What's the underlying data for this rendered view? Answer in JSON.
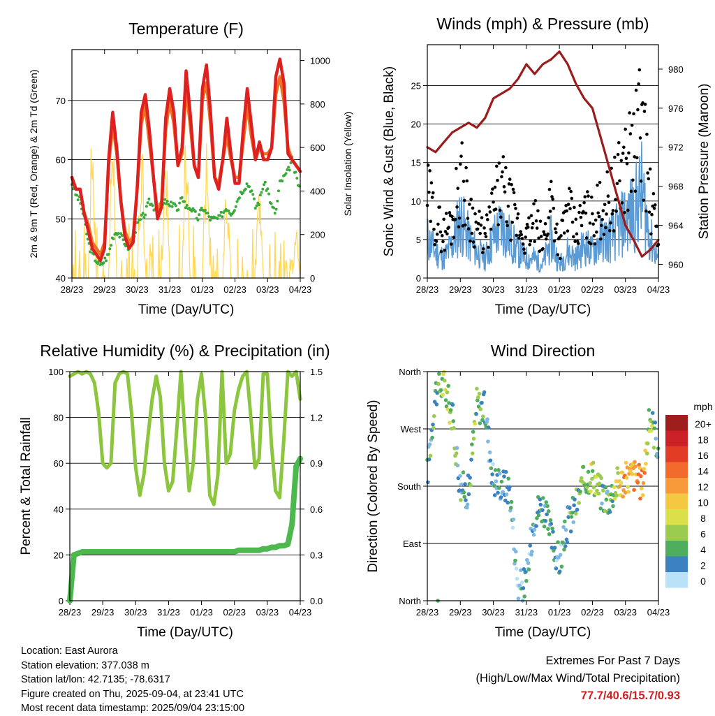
{
  "time_ticks": [
    "28/23",
    "29/23",
    "30/23",
    "31/23",
    "01/23",
    "02/23",
    "03/23",
    "04/23"
  ],
  "colors": {
    "temp2m": "#dd2020",
    "temp9m": "#f07020",
    "dewpoint": "#3aaa3a",
    "solar": "#ffd54a",
    "wind": "#5b9bd5",
    "gust": "#000000",
    "pressure": "#9a1c1c",
    "rh": "#8cc63f",
    "precip": "#4db84d"
  },
  "chart_data": [
    {
      "type": "line",
      "title": "Temperature (F)",
      "xlabel": "Time (Day/UTC)",
      "ylabel": "2m & 9m T (Red, Orange) & 2m Td (Green)",
      "ylabel_right": "Solar Insolation (Yellow)",
      "ylim": [
        40,
        78.6
      ],
      "ylim_right": [
        0,
        1050
      ],
      "yticks": [
        40,
        50,
        60,
        70
      ],
      "yticks_right": [
        0,
        200,
        400,
        600,
        800,
        1000
      ],
      "x_hours": [
        0,
        3,
        6,
        9,
        12,
        15,
        18,
        21,
        24,
        27,
        30,
        33,
        36,
        39,
        42,
        45,
        48,
        51,
        54,
        57,
        60,
        63,
        66,
        69,
        72,
        75,
        78,
        81,
        84,
        87,
        90,
        93,
        96,
        99,
        102,
        105,
        108,
        111,
        114,
        117,
        120,
        123,
        126,
        129,
        132,
        135,
        138,
        141,
        144,
        147,
        150,
        153,
        156,
        159,
        162,
        165,
        168
      ],
      "series": [
        {
          "name": "2m T",
          "values": [
            57,
            55,
            55,
            51,
            48,
            45,
            44,
            43,
            45,
            60,
            68,
            62,
            53,
            47,
            45,
            46,
            55,
            68,
            71,
            65,
            57,
            50,
            52,
            67,
            72,
            68,
            59,
            62,
            75,
            68,
            59,
            57,
            72,
            76,
            68,
            57,
            55,
            60,
            67,
            61,
            56,
            56,
            65,
            72,
            66,
            60,
            63,
            60,
            60,
            62,
            74,
            77,
            73,
            61,
            60,
            59,
            58
          ]
        },
        {
          "name": "9m T",
          "values": [
            57,
            55,
            55,
            51,
            49,
            46,
            45,
            44,
            46,
            59,
            66,
            61,
            53,
            48,
            46,
            47,
            55,
            66,
            69,
            63,
            57,
            51,
            53,
            65,
            70,
            66,
            59,
            61,
            72,
            66,
            59,
            57,
            70,
            73,
            66,
            57,
            56,
            60,
            64,
            60,
            57,
            57,
            63,
            69,
            64,
            60,
            62,
            61,
            61,
            62,
            71,
            74,
            70,
            62,
            60,
            59,
            58
          ]
        },
        {
          "name": "2m Td",
          "values": [
            56,
            54,
            53,
            50,
            46,
            44,
            43,
            42,
            43,
            44,
            47,
            48,
            47,
            46,
            45,
            47,
            49,
            50,
            51,
            53,
            52,
            52,
            52,
            53,
            52,
            53,
            51,
            54,
            52,
            52,
            51,
            50,
            52,
            51,
            50,
            50,
            50,
            51,
            52,
            51,
            52,
            54,
            55,
            56,
            55,
            52,
            53,
            56,
            55,
            52,
            51,
            56,
            57,
            58,
            60,
            57,
            55
          ]
        },
        {
          "name": "Solar Insolation",
          "values": [
            0,
            0,
            0,
            0,
            0,
            900,
            0,
            0,
            0,
            0,
            1010,
            0,
            0,
            0,
            0,
            0,
            0,
            960,
            0,
            0,
            0,
            0,
            0,
            790,
            0,
            0,
            0,
            0,
            890,
            0,
            0,
            0,
            0,
            930,
            0,
            0,
            0,
            0,
            620,
            0,
            0,
            0,
            0,
            0,
            0,
            0,
            650,
            0,
            0,
            0,
            0,
            0,
            0,
            0,
            0,
            280,
            0
          ]
        }
      ]
    },
    {
      "type": "scatter",
      "title": "Winds (mph) & Pressure (mb)",
      "xlabel": "Time (Day/UTC)",
      "ylabel": "Sonic Wind & Gust (Blue, Black)",
      "ylabel_right": "Station Pressure (Maroon)",
      "ylim": [
        0,
        30.3
      ],
      "ylim_right": [
        958.6,
        982.5
      ],
      "yticks": [
        0,
        5,
        10,
        15,
        20,
        25
      ],
      "yticks_right": [
        960,
        964,
        968,
        972,
        976,
        980
      ],
      "x_hours": [
        0,
        6,
        12,
        18,
        24,
        30,
        36,
        42,
        48,
        54,
        60,
        66,
        72,
        78,
        84,
        90,
        96,
        102,
        108,
        114,
        120,
        126,
        132,
        138,
        144,
        150,
        156,
        162,
        168
      ],
      "series": [
        {
          "name": "Sonic Wind",
          "values": [
            6,
            4,
            3,
            5,
            9,
            6,
            4,
            3,
            6,
            8,
            6,
            4,
            3,
            3,
            2,
            6,
            2,
            4,
            3,
            5,
            4,
            6,
            6,
            7,
            9,
            10,
            13,
            6,
            3
          ]
        },
        {
          "name": "Gust",
          "values": [
            13,
            9,
            7,
            9,
            16,
            11,
            8,
            6,
            11,
            14,
            11,
            8,
            6,
            9,
            5,
            13,
            5,
            11,
            7,
            10,
            9,
            11,
            12,
            14,
            18,
            20,
            25,
            12,
            6
          ]
        },
        {
          "name": "Station Pressure",
          "values": [
            972,
            971.5,
            972.5,
            973.5,
            974,
            974.5,
            974,
            975,
            977,
            977.5,
            978,
            979,
            980.5,
            979.5,
            980.5,
            981,
            981.8,
            980.5,
            978.5,
            977,
            976,
            973,
            970,
            967,
            964,
            962.5,
            960.8,
            961.5,
            962.5
          ]
        }
      ]
    },
    {
      "type": "line",
      "title": "Relative Humidity (%) & Precipitation (in)",
      "xlabel": "Time (Day/UTC)",
      "ylabel": "Percent & Total Rainfall",
      "ylim": [
        0,
        100
      ],
      "ylim_right": [
        0,
        1.5
      ],
      "yticks": [
        0,
        20,
        40,
        60,
        80,
        100
      ],
      "yticks_right": [
        0.0,
        0.3,
        0.6,
        0.9,
        1.2,
        1.5
      ],
      "x_hours": [
        0,
        3,
        6,
        9,
        12,
        15,
        18,
        21,
        24,
        27,
        30,
        33,
        36,
        39,
        42,
        45,
        48,
        51,
        54,
        57,
        60,
        63,
        66,
        69,
        72,
        75,
        78,
        81,
        84,
        87,
        90,
        93,
        96,
        99,
        102,
        105,
        108,
        111,
        114,
        117,
        120,
        123,
        126,
        129,
        132,
        135,
        138,
        141,
        144,
        147,
        150,
        153,
        156,
        159,
        162,
        165,
        168
      ],
      "series": [
        {
          "name": "Relative Humidity",
          "values": [
            98,
            99,
            100,
            99,
            100,
            99,
            95,
            82,
            60,
            58,
            60,
            95,
            99,
            100,
            99,
            82,
            58,
            46,
            55,
            72,
            88,
            98,
            89,
            60,
            48,
            52,
            75,
            100,
            72,
            48,
            60,
            88,
            99,
            80,
            46,
            42,
            55,
            100,
            60,
            64,
            83,
            92,
            98,
            100,
            80,
            58,
            62,
            99,
            99,
            68,
            48,
            45,
            70,
            100,
            98,
            100,
            88
          ]
        },
        {
          "name": "Total Rainfall",
          "values": [
            0.0,
            0.3,
            0.31,
            0.32,
            0.32,
            0.32,
            0.32,
            0.32,
            0.32,
            0.32,
            0.32,
            0.32,
            0.32,
            0.32,
            0.32,
            0.32,
            0.32,
            0.32,
            0.32,
            0.32,
            0.32,
            0.32,
            0.32,
            0.32,
            0.32,
            0.32,
            0.32,
            0.32,
            0.32,
            0.32,
            0.32,
            0.32,
            0.32,
            0.32,
            0.32,
            0.32,
            0.32,
            0.32,
            0.32,
            0.32,
            0.32,
            0.33,
            0.33,
            0.33,
            0.33,
            0.33,
            0.33,
            0.34,
            0.34,
            0.35,
            0.35,
            0.36,
            0.36,
            0.37,
            0.5,
            0.88,
            0.93
          ]
        }
      ]
    },
    {
      "type": "scatter",
      "title": "Wind Direction",
      "xlabel": "Time (Day/UTC)",
      "ylabel": "Direction (Colored By Speed)",
      "ylim": [
        0,
        360
      ],
      "yticks": [
        0,
        90,
        180,
        270,
        360
      ],
      "ytick_labels": [
        "North",
        "East",
        "South",
        "West",
        "North"
      ],
      "x_hours": [
        0,
        6,
        12,
        18,
        24,
        30,
        36,
        42,
        48,
        54,
        60,
        66,
        72,
        78,
        84,
        90,
        96,
        102,
        108,
        114,
        120,
        126,
        132,
        138,
        144,
        150,
        156,
        162,
        168
      ],
      "series": [
        {
          "name": "Direction",
          "values": [
            200,
            330,
            340,
            290,
            180,
            170,
            310,
            300,
            190,
            185,
            175,
            20,
            30,
            140,
            150,
            100,
            60,
            120,
            150,
            190,
            200,
            170,
            160,
            185,
            190,
            200,
            180,
            290,
            240
          ]
        },
        {
          "name": "Speed",
          "values": [
            4,
            6,
            8,
            6,
            5,
            4,
            8,
            4,
            3,
            4,
            4,
            2,
            3,
            4,
            6,
            5,
            3,
            4,
            5,
            8,
            9,
            6,
            5,
            10,
            13,
            14,
            14,
            8,
            3
          ]
        }
      ],
      "colorbar": {
        "title": "mph",
        "labels": [
          "20+",
          "18",
          "16",
          "14",
          "12",
          "10",
          "8",
          "6",
          "4",
          "2",
          "0"
        ],
        "colors": [
          "#a01d1d",
          "#cc2127",
          "#e23c24",
          "#f26a2c",
          "#f89a3a",
          "#f5c842",
          "#dbe04a",
          "#9bcc4f",
          "#4fae5e",
          "#3c82c0",
          "#7fb8e3",
          "#b9e1f7"
        ]
      }
    }
  ],
  "info": {
    "location": "Location: East Aurora",
    "elevation": "Station elevation: 377.038 m",
    "latlon": "Station lat/lon: 42.7135; -78.6317",
    "created": "Figure created on Thu, 2025-09-04, at 23:41 UTC",
    "recent": "Most recent data timestamp: 2025/09/04 23:15:00"
  },
  "extremes": {
    "heading": "Extremes For Past 7 Days",
    "subheading": "(High/Low/Max Wind/Total Precipitation)",
    "values": "77.7/40.6/15.7/0.93"
  }
}
